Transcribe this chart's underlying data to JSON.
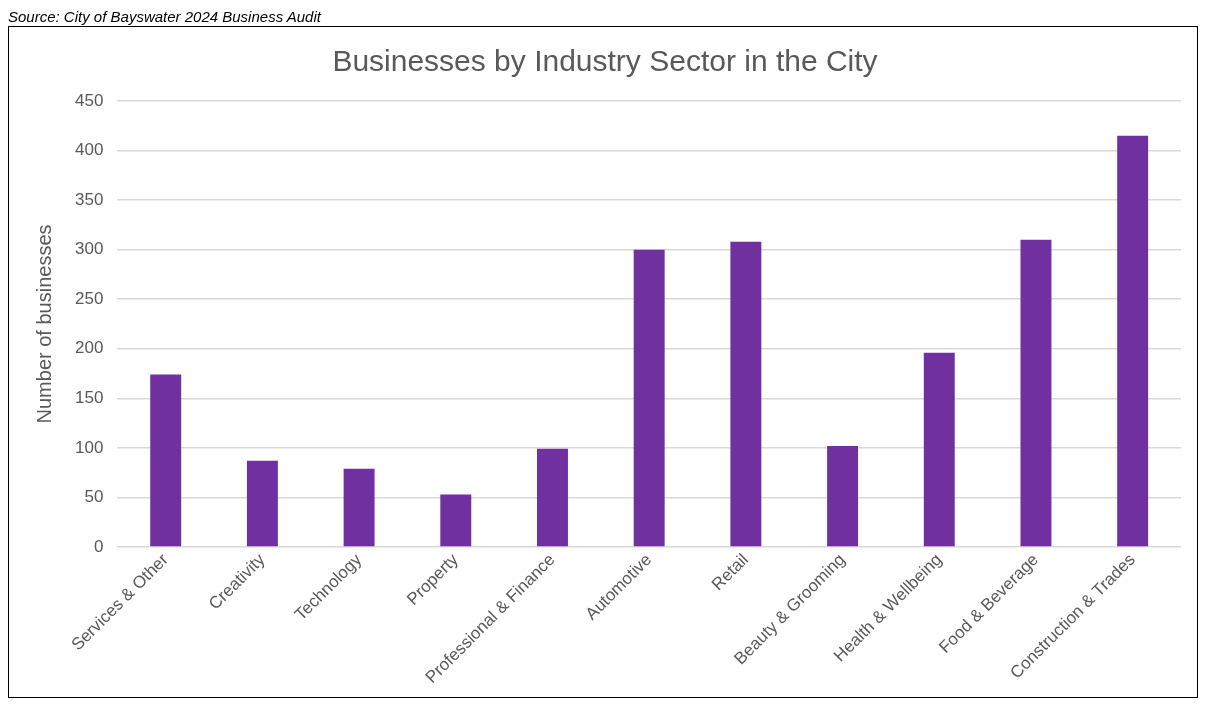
{
  "chart_data": {
    "type": "bar",
    "title": "Businesses by Industry Sector in the City",
    "ylabel": "Number of businesses",
    "annotations": [
      "Source: City of Bayswater 2024 Business Audit"
    ],
    "categories": [
      "Services & Other",
      "Creativity",
      "Technology",
      "Property",
      "Professional & Finance",
      "Automotive",
      "Retail",
      "Beauty & Grooming",
      "Health & Wellbeing",
      "Food & Beverage",
      "Construction & Trades"
    ],
    "values": [
      174,
      87,
      79,
      53,
      99,
      300,
      308,
      102,
      196,
      310,
      415
    ],
    "color": "#7030a0",
    "ylim": [
      0,
      450
    ],
    "yticks": [
      0,
      50,
      100,
      150,
      200,
      250,
      300,
      350,
      400,
      450
    ],
    "grid": "y",
    "legend": false
  }
}
